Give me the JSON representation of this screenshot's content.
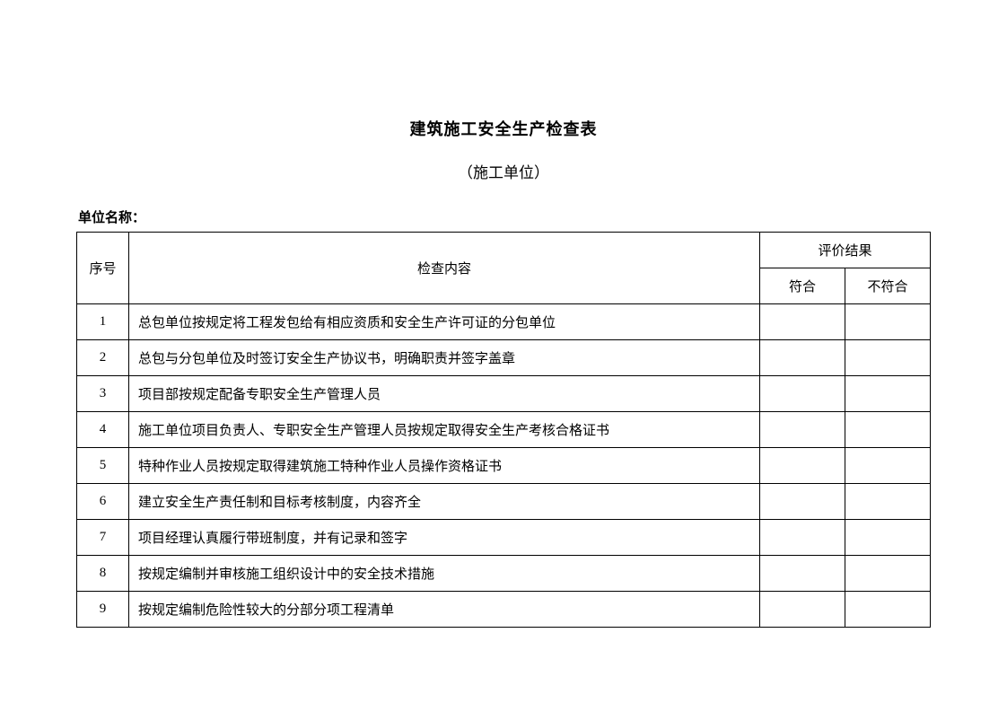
{
  "document": {
    "title": "建筑施工安全生产检查表",
    "subtitle": "（施工单位）",
    "unit_label": "单位名称：",
    "headers": {
      "seq": "序号",
      "content": "检查内容",
      "result": "评价结果",
      "pass": "符合",
      "fail": "不符合"
    },
    "rows": [
      {
        "seq": "1",
        "content": "总包单位按规定将工程发包给有相应资质和安全生产许可证的分包单位",
        "pass": "",
        "fail": ""
      },
      {
        "seq": "2",
        "content": "总包与分包单位及时签订安全生产协议书，明确职责并签字盖章",
        "pass": "",
        "fail": ""
      },
      {
        "seq": "3",
        "content": "项目部按规定配备专职安全生产管理人员",
        "pass": "",
        "fail": ""
      },
      {
        "seq": "4",
        "content": "施工单位项目负责人、专职安全生产管理人员按规定取得安全生产考核合格证书",
        "pass": "",
        "fail": ""
      },
      {
        "seq": "5",
        "content": "特种作业人员按规定取得建筑施工特种作业人员操作资格证书",
        "pass": "",
        "fail": ""
      },
      {
        "seq": "6",
        "content": "建立安全生产责任制和目标考核制度，内容齐全",
        "pass": "",
        "fail": ""
      },
      {
        "seq": "7",
        "content": "项目经理认真履行带班制度，并有记录和签字",
        "pass": "",
        "fail": ""
      },
      {
        "seq": "8",
        "content": "按规定编制并审核施工组织设计中的安全技术措施",
        "pass": "",
        "fail": ""
      },
      {
        "seq": "9",
        "content": "按规定编制危险性较大的分部分项工程清单",
        "pass": "",
        "fail": ""
      }
    ]
  }
}
